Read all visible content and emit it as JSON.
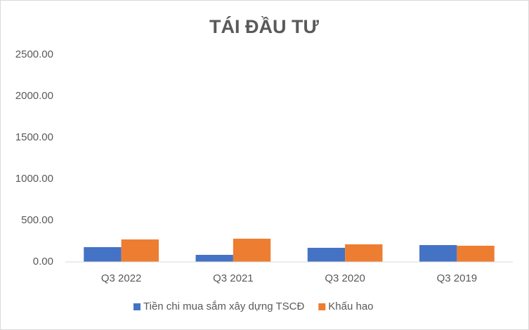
{
  "chart_data": {
    "type": "bar",
    "title": "TÁI ĐẦU TƯ",
    "categories": [
      "Q3 2022",
      "Q3 2021",
      "Q3 2020",
      "Q3 2019"
    ],
    "series": [
      {
        "name": "Tiền chi mua sắm xây dựng TSCĐ",
        "color": "#4472c4",
        "values": [
          178,
          85,
          170,
          203
        ]
      },
      {
        "name": "Khấu hao",
        "color": "#ed7d31",
        "values": [
          271,
          280,
          212,
          195
        ]
      }
    ],
    "ylim": [
      0,
      2500
    ],
    "yticks": [
      {
        "value": 0,
        "label": "0.00"
      },
      {
        "value": 500,
        "label": "500.00"
      },
      {
        "value": 1000,
        "label": "1000.00"
      },
      {
        "value": 1500,
        "label": "1500.00"
      },
      {
        "value": 2000,
        "label": "2000.00"
      },
      {
        "value": 2500,
        "label": "2500.00"
      }
    ],
    "grid": false,
    "legend": "bottom"
  }
}
